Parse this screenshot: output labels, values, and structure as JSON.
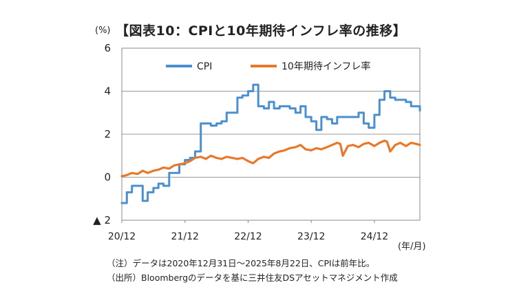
{
  "header": {
    "unit_y": "(%)",
    "title": "【図表10：CPIと10年期待インフレ率の推移】"
  },
  "footer": {
    "unit_x": "(年/月)",
    "note": "（注）データは2020年12月31日～2025年8月22日、CPIは前年比。",
    "source": "（出所）Bloombergのデータを基に三井住友DSアセットマネジメント作成"
  },
  "colors": {
    "cpi": "#4A8FD0",
    "inflation_expectation": "#E8782A",
    "grid": "#9a9a9a",
    "axis": "#888888"
  },
  "chart_data": {
    "type": "line",
    "title": "【図表10：CPIと10年期待インフレ率の推移】",
    "xlabel": "(年/月)",
    "ylabel": "(%)",
    "ylim": [
      -2,
      6
    ],
    "yticks": [
      {
        "value": 6,
        "label": "6"
      },
      {
        "value": 4,
        "label": "4"
      },
      {
        "value": 2,
        "label": "2"
      },
      {
        "value": 0,
        "label": "0"
      },
      {
        "value": -2,
        "label": "▲ 2"
      }
    ],
    "xlim": [
      2020.92,
      2025.64
    ],
    "xticks": [
      {
        "value": 2020.92,
        "label": "20/12"
      },
      {
        "value": 2021.92,
        "label": "21/12"
      },
      {
        "value": 2022.92,
        "label": "22/12"
      },
      {
        "value": 2023.92,
        "label": "23/12"
      },
      {
        "value": 2024.92,
        "label": "24/12"
      }
    ],
    "grid": "horizontal",
    "legend": "top",
    "series": [
      {
        "name": "CPI",
        "style": "step",
        "x": [
          2020.92,
          2021.0,
          2021.08,
          2021.17,
          2021.25,
          2021.33,
          2021.42,
          2021.5,
          2021.58,
          2021.67,
          2021.75,
          2021.83,
          2021.92,
          2022.0,
          2022.08,
          2022.17,
          2022.25,
          2022.33,
          2022.42,
          2022.5,
          2022.58,
          2022.67,
          2022.75,
          2022.83,
          2022.92,
          2023.0,
          2023.08,
          2023.17,
          2023.25,
          2023.33,
          2023.42,
          2023.5,
          2023.58,
          2023.67,
          2023.75,
          2023.83,
          2023.92,
          2024.0,
          2024.08,
          2024.17,
          2024.25,
          2024.33,
          2024.42,
          2024.5,
          2024.58,
          2024.67,
          2024.75,
          2024.83,
          2024.92,
          2025.0,
          2025.08,
          2025.17,
          2025.25,
          2025.33,
          2025.42,
          2025.5,
          2025.58,
          2025.64
        ],
        "y": [
          -1.2,
          -0.7,
          -0.4,
          -0.4,
          -1.1,
          -0.7,
          -0.5,
          -0.3,
          -0.4,
          0.2,
          0.2,
          0.6,
          0.8,
          0.9,
          1.2,
          2.5,
          2.5,
          2.4,
          2.5,
          2.6,
          3.0,
          3.0,
          3.7,
          3.8,
          4.0,
          4.3,
          3.3,
          3.2,
          3.5,
          3.2,
          3.3,
          3.3,
          3.2,
          3.0,
          3.3,
          2.8,
          2.6,
          2.2,
          2.8,
          2.7,
          2.5,
          2.8,
          2.8,
          2.8,
          2.8,
          3.0,
          2.5,
          2.3,
          2.9,
          3.6,
          4.0,
          3.7,
          3.6,
          3.6,
          3.5,
          3.3,
          3.3,
          3.1
        ]
      },
      {
        "name": "10年期待インフレ率",
        "style": "line",
        "x": [
          2020.92,
          2021.0,
          2021.08,
          2021.17,
          2021.25,
          2021.33,
          2021.42,
          2021.5,
          2021.58,
          2021.67,
          2021.75,
          2021.83,
          2021.92,
          2022.0,
          2022.08,
          2022.17,
          2022.25,
          2022.33,
          2022.42,
          2022.5,
          2022.58,
          2022.67,
          2022.75,
          2022.83,
          2022.92,
          2023.0,
          2023.08,
          2023.17,
          2023.25,
          2023.33,
          2023.42,
          2023.5,
          2023.58,
          2023.67,
          2023.75,
          2023.83,
          2023.92,
          2024.0,
          2024.08,
          2024.17,
          2024.25,
          2024.33,
          2024.38,
          2024.42,
          2024.5,
          2024.58,
          2024.67,
          2024.75,
          2024.83,
          2024.92,
          2025.0,
          2025.08,
          2025.12,
          2025.17,
          2025.25,
          2025.33,
          2025.42,
          2025.5,
          2025.58,
          2025.64
        ],
        "y": [
          0.05,
          0.1,
          0.2,
          0.15,
          0.3,
          0.2,
          0.3,
          0.35,
          0.45,
          0.4,
          0.55,
          0.6,
          0.65,
          0.75,
          0.9,
          0.95,
          0.85,
          1.0,
          0.9,
          0.85,
          0.95,
          0.9,
          0.85,
          0.9,
          0.75,
          0.65,
          0.85,
          0.95,
          0.9,
          1.1,
          1.2,
          1.25,
          1.35,
          1.4,
          1.5,
          1.3,
          1.25,
          1.35,
          1.3,
          1.4,
          1.5,
          1.6,
          1.55,
          1.0,
          1.45,
          1.5,
          1.4,
          1.55,
          1.6,
          1.45,
          1.6,
          1.7,
          1.65,
          1.2,
          1.5,
          1.6,
          1.45,
          1.6,
          1.55,
          1.5
        ]
      }
    ]
  }
}
